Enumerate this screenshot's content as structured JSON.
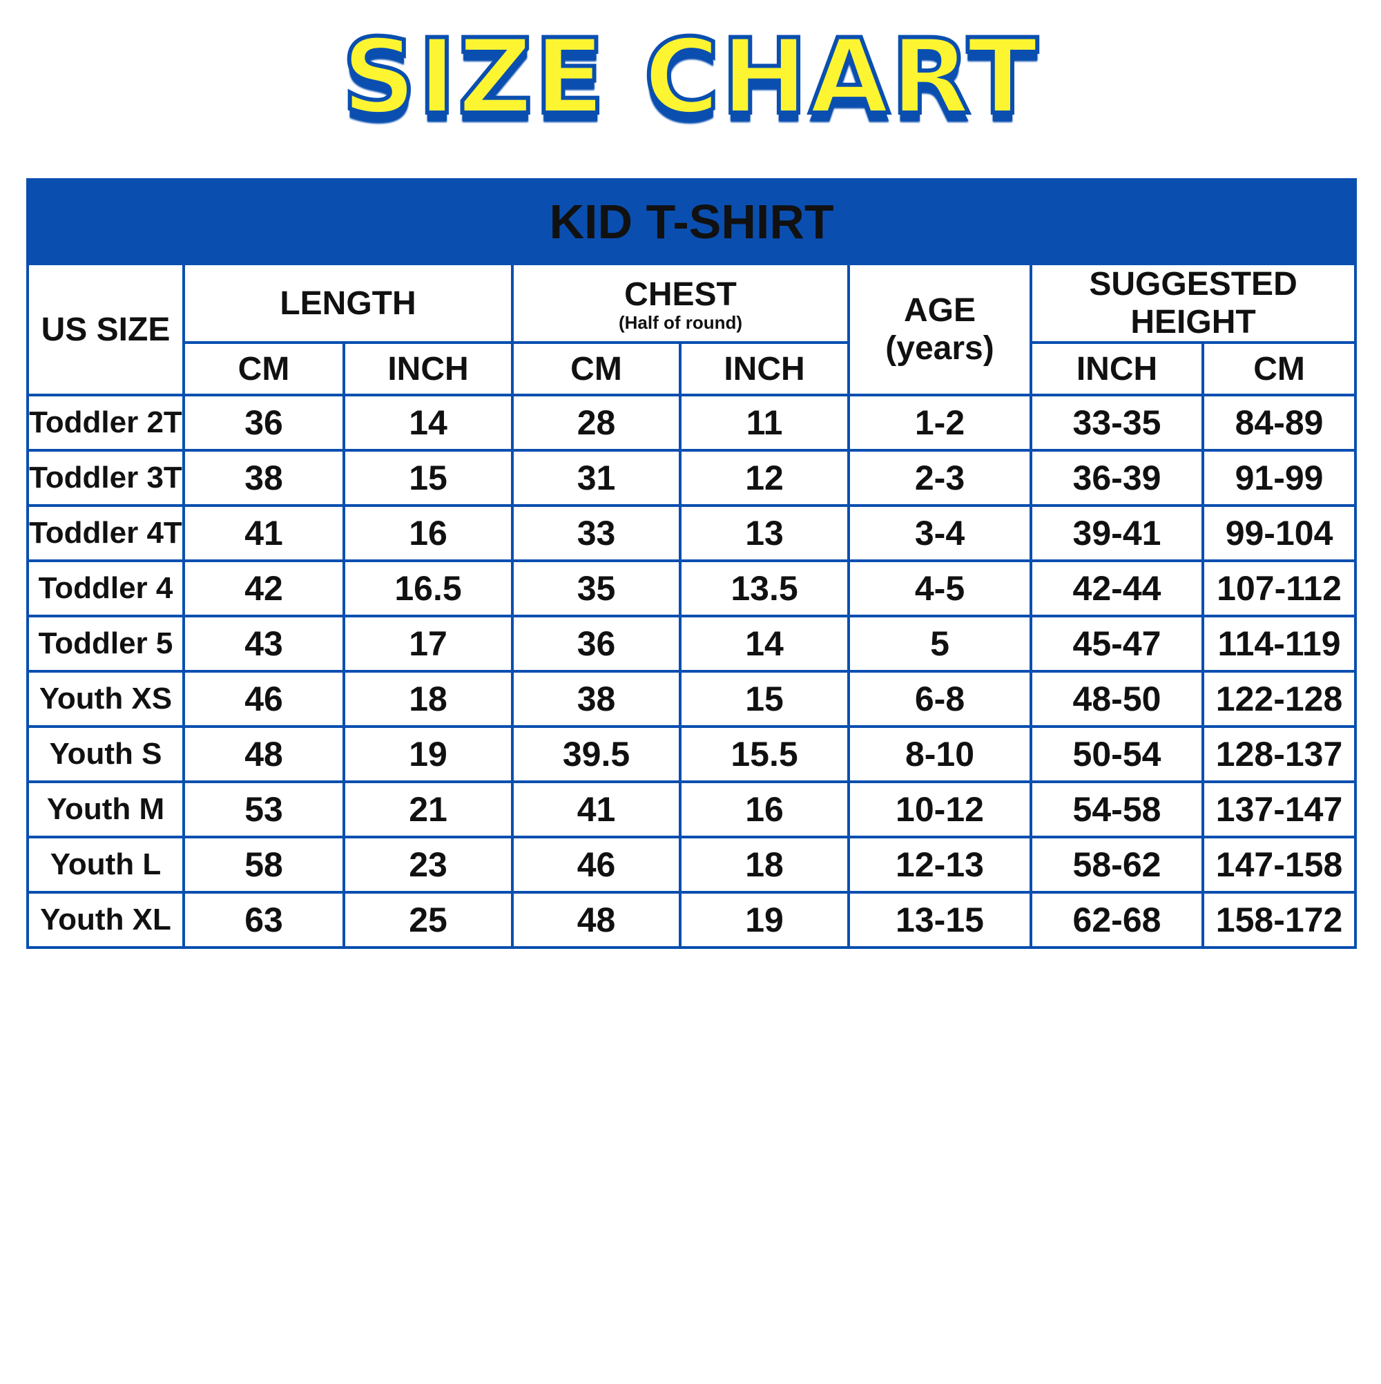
{
  "title": "SIZE CHART",
  "table": {
    "banner": "KID T-SHIRT",
    "headers": {
      "us_size": "US SIZE",
      "length": "LENGTH",
      "chest": "CHEST",
      "chest_note": "(Half of round)",
      "age": "AGE",
      "age_unit": "(years)",
      "height": "SUGGESTED HEIGHT"
    },
    "subheaders": {
      "length_cm": "CM",
      "length_inch": "INCH",
      "chest_cm": "CM",
      "chest_inch": "INCH",
      "height_inch": "INCH",
      "height_cm": "CM"
    },
    "rows": [
      [
        "Toddler 2T",
        "36",
        "14",
        "28",
        "11",
        "1-2",
        "33-35",
        "84-89"
      ],
      [
        "Toddler 3T",
        "38",
        "15",
        "31",
        "12",
        "2-3",
        "36-39",
        "91-99"
      ],
      [
        "Toddler 4T",
        "41",
        "16",
        "33",
        "13",
        "3-4",
        "39-41",
        "99-104"
      ],
      [
        "Toddler 4",
        "42",
        "16.5",
        "35",
        "13.5",
        "4-5",
        "42-44",
        "107-112"
      ],
      [
        "Toddler 5",
        "43",
        "17",
        "36",
        "14",
        "5",
        "45-47",
        "114-119"
      ],
      [
        "Youth XS",
        "46",
        "18",
        "38",
        "15",
        "6-8",
        "48-50",
        "122-128"
      ],
      [
        "Youth S",
        "48",
        "19",
        "39.5",
        "15.5",
        "8-10",
        "50-54",
        "128-137"
      ],
      [
        "Youth M",
        "53",
        "21",
        "41",
        "16",
        "10-12",
        "54-58",
        "137-147"
      ],
      [
        "Youth L",
        "58",
        "23",
        "46",
        "18",
        "12-13",
        "58-62",
        "147-158"
      ],
      [
        "Youth XL",
        "63",
        "25",
        "48",
        "19",
        "13-15",
        "62-68",
        "158-172"
      ]
    ]
  },
  "colors": {
    "blue": "#0a4fb0",
    "yellow": "#fdf531"
  }
}
